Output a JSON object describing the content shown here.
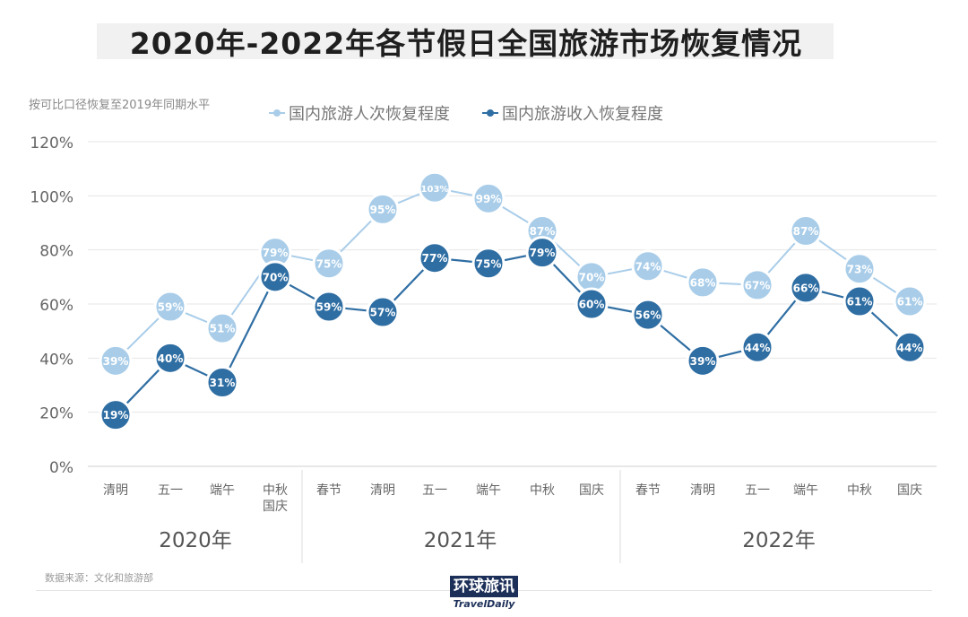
{
  "title": "2020年-2022年各节假日全国旅游市场恢复情况",
  "subtitle": "按可比口径恢复至2019年同期水平",
  "source": "数据来源：文化和旅游部",
  "logo": {
    "cn": "环球旅讯",
    "en": "TravelDaily"
  },
  "colors": {
    "light": "#a9cde9",
    "dark": "#2f6ea3",
    "grid": "#e6e6e6"
  },
  "chart_data": {
    "type": "line",
    "categories": [
      [
        "清明"
      ],
      [
        "五一"
      ],
      [
        "端午"
      ],
      [
        "中秋",
        "国庆"
      ],
      [
        "春节"
      ],
      [
        "清明"
      ],
      [
        "五一"
      ],
      [
        "端午"
      ],
      [
        "中秋"
      ],
      [
        "国庆"
      ],
      [
        "春节"
      ],
      [
        "清明"
      ],
      [
        "五一"
      ],
      [
        "端午"
      ],
      [
        "中秋"
      ],
      [
        "国庆"
      ]
    ],
    "groups": [
      {
        "label": "2020年",
        "from": 0,
        "to": 3
      },
      {
        "label": "2021年",
        "from": 4,
        "to": 9
      },
      {
        "label": "2022年",
        "from": 10,
        "to": 15
      }
    ],
    "yticks": [
      "0%",
      "20%",
      "40%",
      "60%",
      "80%",
      "100%",
      "120%"
    ],
    "ylim": [
      0,
      120
    ],
    "legend_position": "top",
    "series": [
      {
        "name": "国内旅游人次恢复程度",
        "color": "#a9cde9",
        "values": [
          39,
          59,
          51,
          79,
          75,
          95,
          103,
          99,
          87,
          70,
          74,
          68,
          67,
          87,
          73,
          61
        ]
      },
      {
        "name": "国内旅游收入恢复程度",
        "color": "#2f6ea3",
        "values": [
          19,
          40,
          31,
          70,
          59,
          57,
          77,
          75,
          79,
          60,
          56,
          39,
          44,
          66,
          61,
          44
        ]
      }
    ]
  }
}
